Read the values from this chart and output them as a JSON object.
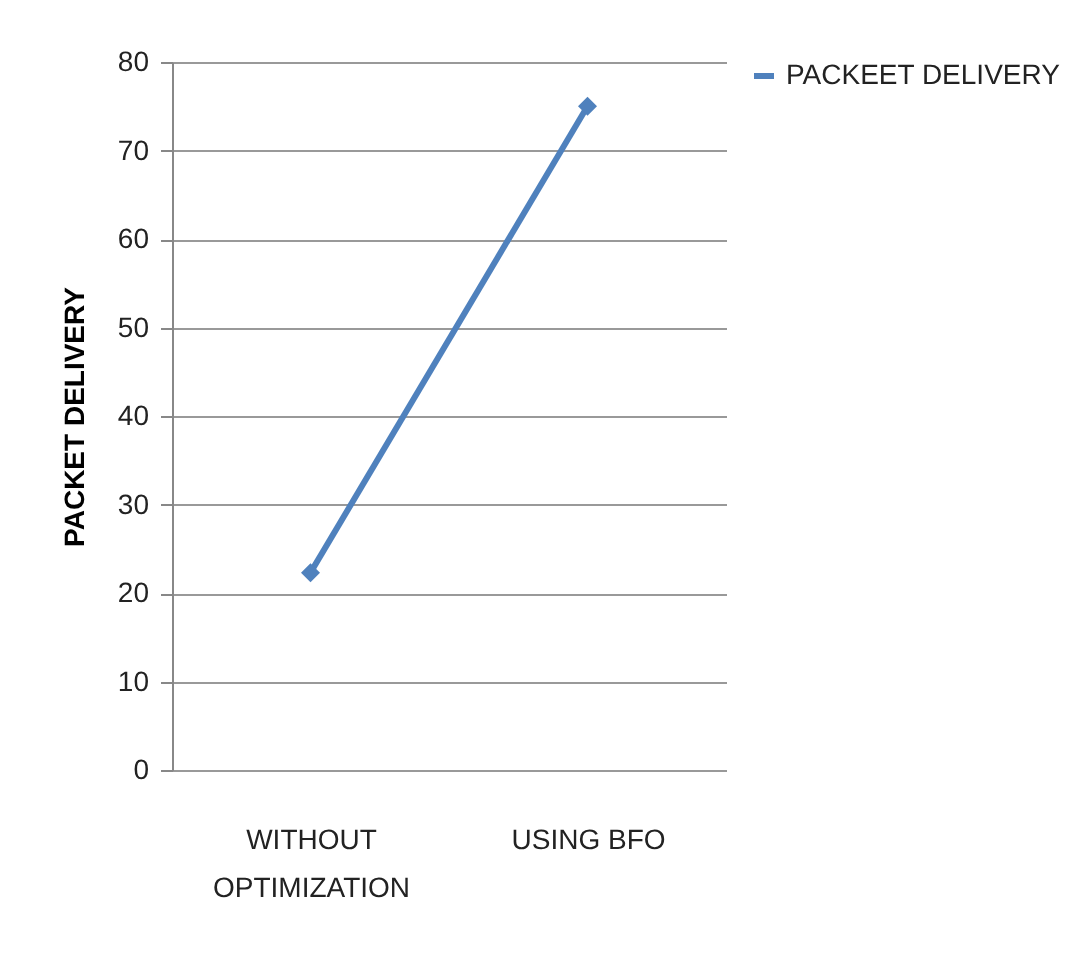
{
  "chart_data": {
    "type": "line",
    "ylabel": "PACKET DELIVERY",
    "categories": [
      "WITHOUT OPTIMIZATION",
      "USING BFO"
    ],
    "series": [
      {
        "name": "PACKEET DELIVERY",
        "color": "#4f81bd",
        "values": [
          22.3,
          75
        ]
      }
    ],
    "ylim": [
      0,
      80
    ],
    "yticks": [
      0,
      10,
      20,
      30,
      40,
      50,
      60,
      70,
      80
    ],
    "grid": "y",
    "legend": "right",
    "marker": "diamond",
    "line_style": "solid"
  }
}
